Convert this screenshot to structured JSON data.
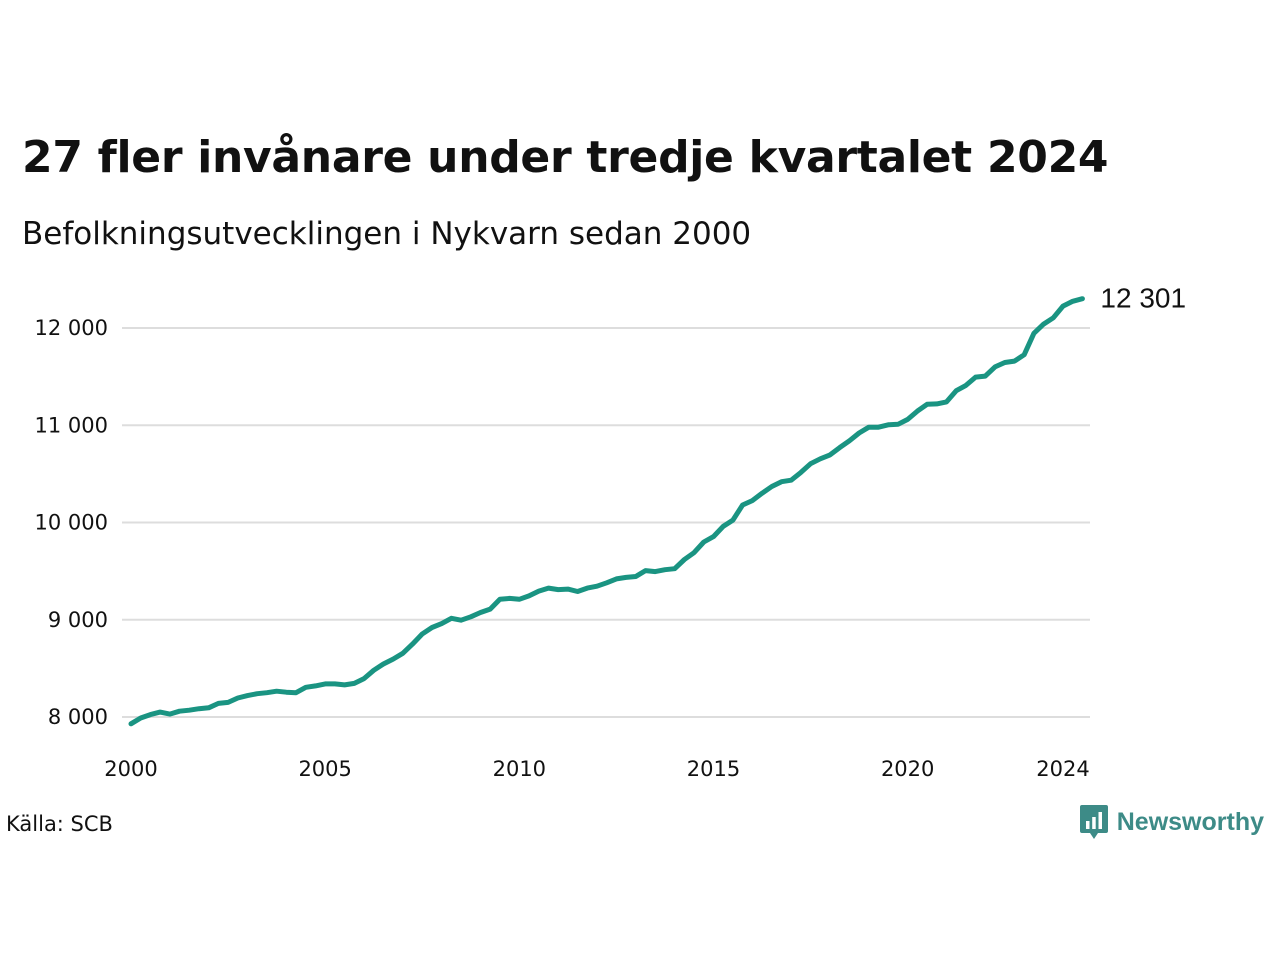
{
  "title": "27 fler invånare under tredje kvartalet 2024",
  "subtitle": "Befolkningsutvecklingen i Nykvarn sedan 2000",
  "source": "Källa: SCB",
  "brand": {
    "name": "Newsworthy",
    "color": "#3d8b87",
    "icon": "bar-chart-pin-icon"
  },
  "colors": {
    "line": "#1a9482",
    "grid": "#dddddd"
  },
  "chart_data": {
    "type": "line",
    "title": "27 fler invånare under tredje kvartalet 2024",
    "subtitle": "Befolkningsutvecklingen i Nykvarn sedan 2000",
    "xlabel": "",
    "ylabel": "",
    "xlim": [
      2000,
      2024.5
    ],
    "ylim": [
      7900,
      12350
    ],
    "x_ticks": [
      2000,
      2005,
      2010,
      2015,
      2020,
      2024
    ],
    "x_tick_labels": [
      "2000",
      "2005",
      "2010",
      "2015",
      "2020",
      "2024"
    ],
    "y_ticks": [
      8000,
      9000,
      10000,
      11000,
      12000
    ],
    "y_tick_labels": [
      "8 000",
      "9 000",
      "10 000",
      "11 000",
      "12 000"
    ],
    "grid": "horizontal",
    "legend": "none",
    "end_label": "12 301",
    "series": [
      {
        "x": [
          2000.0,
          2000.25,
          2000.5,
          2000.75,
          2001.0,
          2001.25,
          2001.5,
          2001.75,
          2002.0,
          2002.25,
          2002.5,
          2002.75,
          2003.0,
          2003.25,
          2003.5,
          2003.75,
          2004.0,
          2004.25,
          2004.5,
          2004.75,
          2005.0,
          2005.25,
          2005.5,
          2005.75,
          2006.0,
          2006.25,
          2006.5,
          2006.75,
          2007.0,
          2007.25,
          2007.5,
          2007.75,
          2008.0,
          2008.25,
          2008.5,
          2008.75,
          2009.0,
          2009.25,
          2009.5,
          2009.75,
          2010.0,
          2010.25,
          2010.5,
          2010.75,
          2011.0,
          2011.25,
          2011.5,
          2011.75,
          2012.0,
          2012.25,
          2012.5,
          2012.75,
          2013.0,
          2013.25,
          2013.5,
          2013.75,
          2014.0,
          2014.25,
          2014.5,
          2014.75,
          2015.0,
          2015.25,
          2015.5,
          2015.75,
          2016.0,
          2016.25,
          2016.5,
          2016.75,
          2017.0,
          2017.25,
          2017.5,
          2017.75,
          2018.0,
          2018.25,
          2018.5,
          2018.75,
          2019.0,
          2019.25,
          2019.5,
          2019.75,
          2020.0,
          2020.25,
          2020.5,
          2020.75,
          2021.0,
          2021.25,
          2021.5,
          2021.75,
          2022.0,
          2022.25,
          2022.5,
          2022.75,
          2023.0,
          2023.25,
          2023.5,
          2023.75,
          2024.0,
          2024.25,
          2024.5
        ],
        "y": [
          7930,
          7990,
          8025,
          8050,
          8030,
          8060,
          8070,
          8085,
          8095,
          8140,
          8150,
          8195,
          8220,
          8240,
          8250,
          8265,
          8255,
          8250,
          8305,
          8320,
          8340,
          8340,
          8330,
          8345,
          8395,
          8480,
          8545,
          8595,
          8655,
          8750,
          8855,
          8920,
          8960,
          9015,
          8995,
          9030,
          9075,
          9110,
          9210,
          9220,
          9210,
          9245,
          9295,
          9325,
          9310,
          9315,
          9290,
          9325,
          9345,
          9380,
          9420,
          9435,
          9445,
          9505,
          9495,
          9515,
          9525,
          9620,
          9690,
          9800,
          9855,
          9960,
          10025,
          10180,
          10225,
          10300,
          10370,
          10420,
          10435,
          10515,
          10605,
          10655,
          10695,
          10770,
          10840,
          10920,
          10980,
          10980,
          11005,
          11010,
          11060,
          11145,
          11215,
          11220,
          11240,
          11355,
          11410,
          11495,
          11505,
          11600,
          11645,
          11660,
          11725,
          11945,
          12040,
          12105,
          12225,
          12275,
          12301
        ]
      }
    ]
  }
}
